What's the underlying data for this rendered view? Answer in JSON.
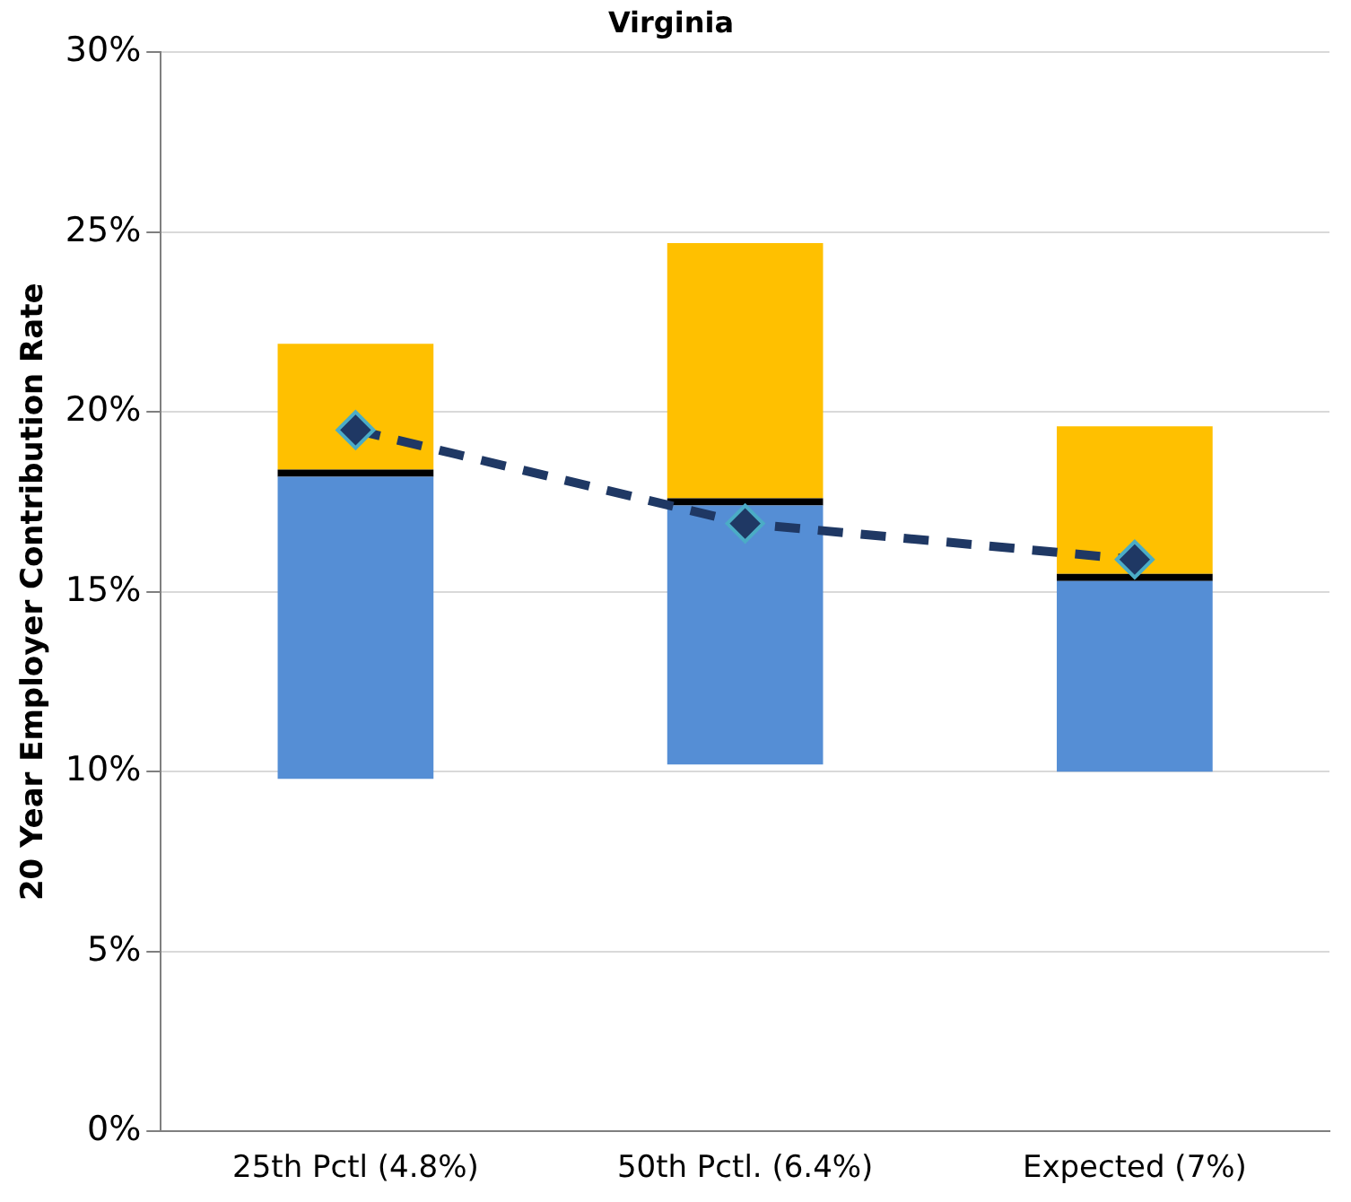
{
  "chart_data": {
    "type": "bar",
    "title": "Virginia",
    "ylabel": "20 Year Employer Contribution Rate",
    "categories": [
      "25th Pctl (4.8%)",
      "50th Pctl. (6.4%)",
      "Expected (7%)"
    ],
    "stacked": true,
    "series": [
      {
        "color": "#558ed5",
        "values": [
          8.4,
          7.2,
          5.3
        ],
        "base": [
          9.8,
          10.2,
          10.0
        ]
      },
      {
        "color": "#000000",
        "values": [
          0.2,
          0.2,
          0.2
        ]
      },
      {
        "color": "#ffc000",
        "values": [
          3.5,
          7.1,
          4.1
        ]
      },
      {
        "type": "line",
        "color": "#1f3864",
        "values": [
          19.5,
          16.9,
          15.9
        ],
        "marker": "diamond",
        "line_style": "dashed"
      }
    ],
    "ylim": [
      0,
      30
    ],
    "yticks": [
      {
        "value": 0,
        "label": "0%"
      },
      {
        "value": 5,
        "label": "5%"
      },
      {
        "value": 10,
        "label": "10%"
      },
      {
        "value": 15,
        "label": "15%"
      },
      {
        "value": 20,
        "label": "20%"
      },
      {
        "value": 25,
        "label": "25%"
      },
      {
        "value": 30,
        "label": "30%"
      }
    ],
    "grid": "y",
    "legend": false
  }
}
